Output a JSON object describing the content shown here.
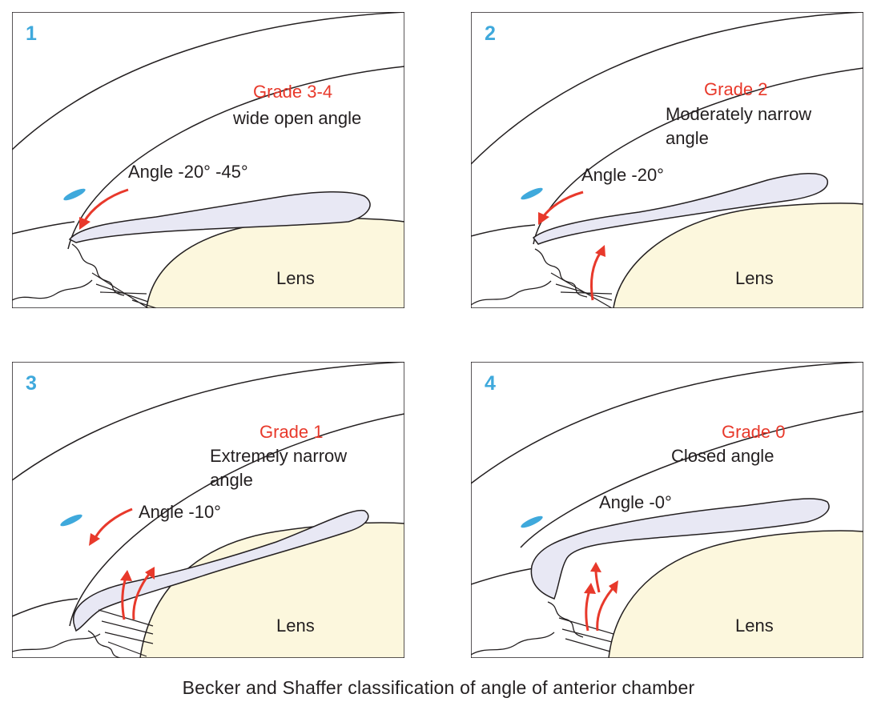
{
  "panels": [
    {
      "number": "1",
      "grade": "Grade 3-4",
      "description": [
        "wide open angle"
      ],
      "angle": "Angle -20° -45°",
      "lens": "Lens"
    },
    {
      "number": "2",
      "grade": "Grade 2",
      "description": [
        "Moderately narrow",
        "angle"
      ],
      "angle": "Angle -20°",
      "lens": "Lens"
    },
    {
      "number": "3",
      "grade": "Grade 1",
      "description": [
        "Extremely narrow",
        "angle"
      ],
      "angle": "Angle -10°",
      "lens": "Lens"
    },
    {
      "number": "4",
      "grade": "Grade 0",
      "description": [
        "Closed angle"
      ],
      "angle": "Angle -0°",
      "lens": "Lens"
    }
  ],
  "caption": "Becker and Shaffer classification of angle of anterior chamber",
  "colors": {
    "number": "#3fa9dc",
    "grade": "#e8392b",
    "arrow": "#e8392b",
    "iris": "#e8e8f4",
    "lens": "#fcf7dd",
    "outline": "#231f20",
    "schwalbe_mark": "#3fa9dc"
  }
}
